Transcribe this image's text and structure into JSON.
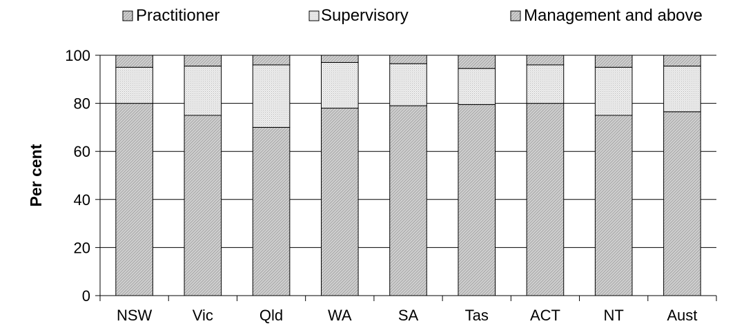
{
  "chart_data": {
    "type": "bar",
    "stacked": true,
    "title": "",
    "xlabel": "",
    "ylabel": "Per cent",
    "ylim": [
      0,
      100
    ],
    "yticks": [
      0,
      20,
      40,
      60,
      80,
      100
    ],
    "grid": "horizontal",
    "legend_position": "top",
    "categories": [
      "NSW",
      "Vic",
      "Qld",
      "WA",
      "SA",
      "Tas",
      "ACT",
      "NT",
      "Aust"
    ],
    "series": [
      {
        "name": "Practitioner",
        "values": [
          80,
          75,
          70,
          78,
          79,
          79.5,
          80,
          75,
          76.5
        ],
        "color": "#c8c8c8",
        "pattern": "dense-diagonal"
      },
      {
        "name": "Supervisory",
        "values": [
          15,
          20.5,
          26,
          19,
          17.5,
          15,
          16,
          20,
          19
        ],
        "color": "#e8e8e8",
        "pattern": "light-dots"
      },
      {
        "name": "Management and above",
        "values": [
          5,
          4.5,
          4,
          3,
          3.5,
          5.5,
          4,
          5,
          4.5
        ],
        "color": "#bcbcbc",
        "pattern": "dense-diagonal"
      }
    ]
  }
}
